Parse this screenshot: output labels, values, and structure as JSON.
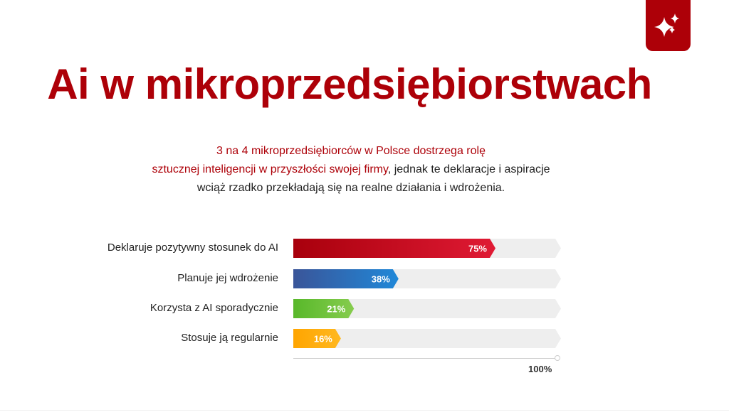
{
  "header": {
    "title": "Ai w mikroprzedsiębiorstwach",
    "badge_icon": "sparkles-icon",
    "subtitle_hl1": "3 na 4 mikroprzedsiębiorców w Polsce dostrzega rolę",
    "subtitle_hl2": "sztucznej inteligencji w przyszłości swojej firmy",
    "subtitle_rest2": ", jednak te deklaracje i aspiracje",
    "subtitle_line3": "wciąż rzadko przekładają się na realne działania i wdrożenia."
  },
  "chart_data": {
    "type": "bar",
    "orientation": "horizontal",
    "categories": [
      "Deklaruje pozytywny stosunek do AI",
      "Planuje jej wdrożenie",
      "Korzysta z AI sporadycznie",
      "Stosuje ją regularnie"
    ],
    "values": [
      75,
      38,
      21,
      16
    ],
    "value_labels": [
      "75%",
      "38%",
      "21%",
      "16%"
    ],
    "colors": [
      [
        "#a8000c",
        "#e01a34"
      ],
      [
        "#3a5599",
        "#2088d8"
      ],
      [
        "#58b82a",
        "#86cc4e"
      ],
      [
        "#ffa500",
        "#ffb820"
      ]
    ],
    "xlim": [
      0,
      100
    ],
    "axis_max_label": "100%"
  }
}
